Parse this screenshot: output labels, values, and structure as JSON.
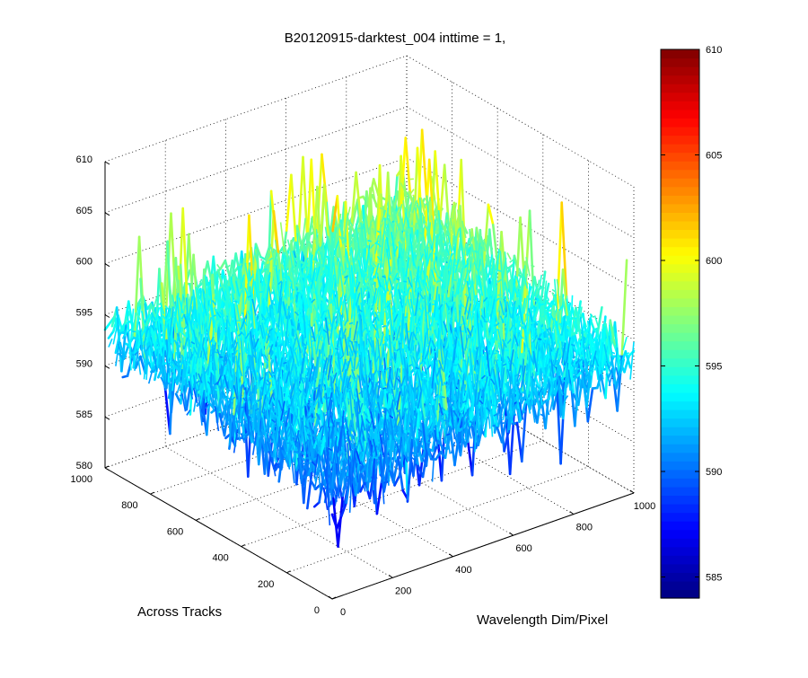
{
  "chart_data": {
    "type": "surface3d",
    "title": "B20120915-darktest_004 inttime = 1,",
    "xlabel": "Wavelength Dim/Pixel",
    "ylabel": "Across Tracks",
    "zlabel": "",
    "x_ticks": [
      "0",
      "200",
      "400",
      "600",
      "800",
      "1000"
    ],
    "y_ticks": [
      "0",
      "200",
      "400",
      "600",
      "800",
      "1000"
    ],
    "z_ticks": [
      "580",
      "585",
      "590",
      "595",
      "600",
      "605",
      "610"
    ],
    "xlim": [
      0,
      1000
    ],
    "ylim": [
      0,
      1000
    ],
    "zlim": [
      580,
      610
    ],
    "grid": true,
    "colormap": "jet",
    "colorbar": {
      "range": [
        584,
        610
      ],
      "ticks": [
        "585",
        "590",
        "595",
        "600",
        "605",
        "610"
      ]
    },
    "surface_summary": {
      "description_values": {
        "typical_min": 584,
        "typical_mean": 594,
        "typical_max": 610
      },
      "trend": "values increase from the (0,0) corner toward the (1000,1000) corner"
    }
  },
  "colors": {
    "background": "#ffffff",
    "axis": "#000000",
    "grid": "#000000"
  }
}
